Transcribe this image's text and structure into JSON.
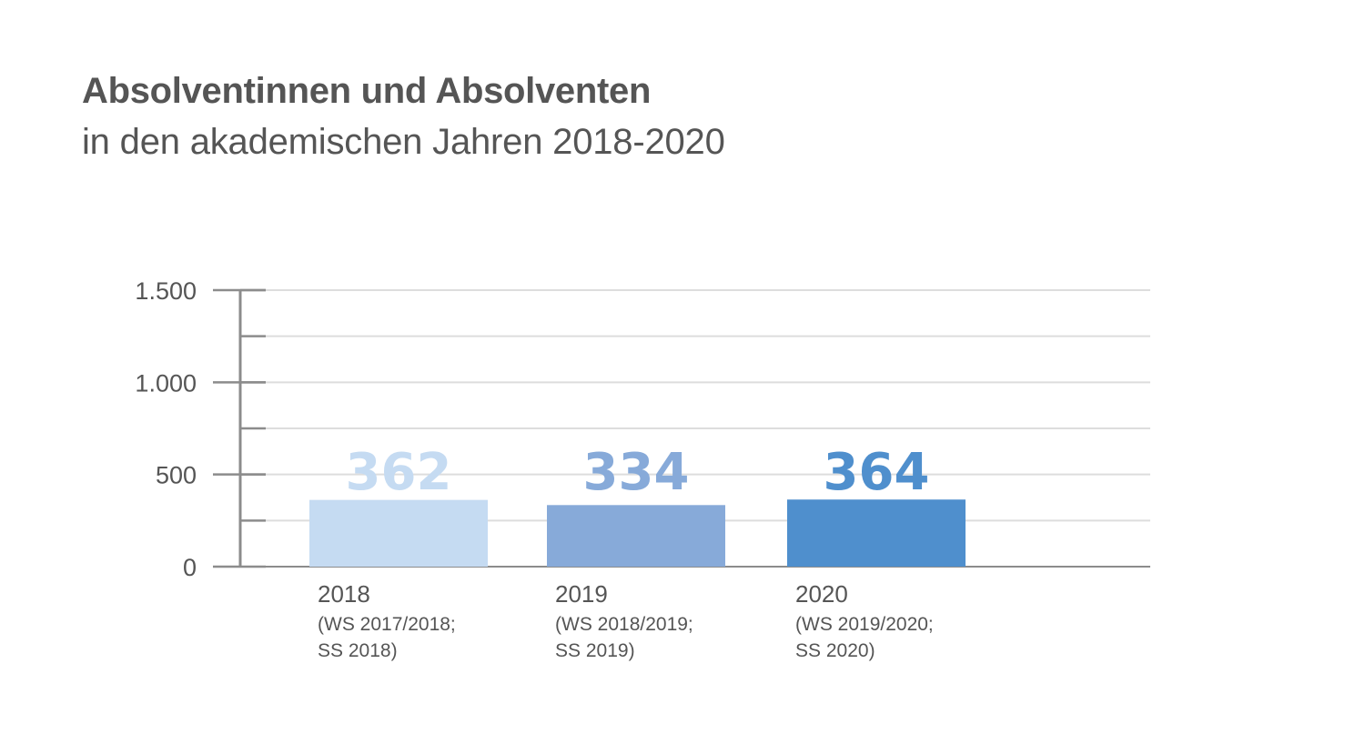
{
  "title": "Absolventinnen und Absolventen",
  "subtitle": "in den akademischen Jahren 2018-2020",
  "chart_data": {
    "type": "bar",
    "categories": [
      "2018",
      "2019",
      "2020"
    ],
    "category_sublabels": [
      [
        "(WS 2017/2018;",
        "SS 2018)"
      ],
      [
        "(WS 2018/2019;",
        "SS 2019)"
      ],
      [
        "(WS 2019/2020;",
        "SS 2020)"
      ]
    ],
    "values": [
      362,
      334,
      364
    ],
    "data_labels": [
      "362",
      "334",
      "364"
    ],
    "bar_colors": [
      "#c5dbf2",
      "#87aad9",
      "#4f8fcd"
    ],
    "yticks": [
      0,
      500,
      1000,
      1500
    ],
    "ytick_labels": [
      "0",
      "500",
      "1.000",
      "1.500"
    ],
    "ylim": [
      0,
      1500
    ],
    "grid": true,
    "xlabel": "",
    "ylabel": ""
  }
}
